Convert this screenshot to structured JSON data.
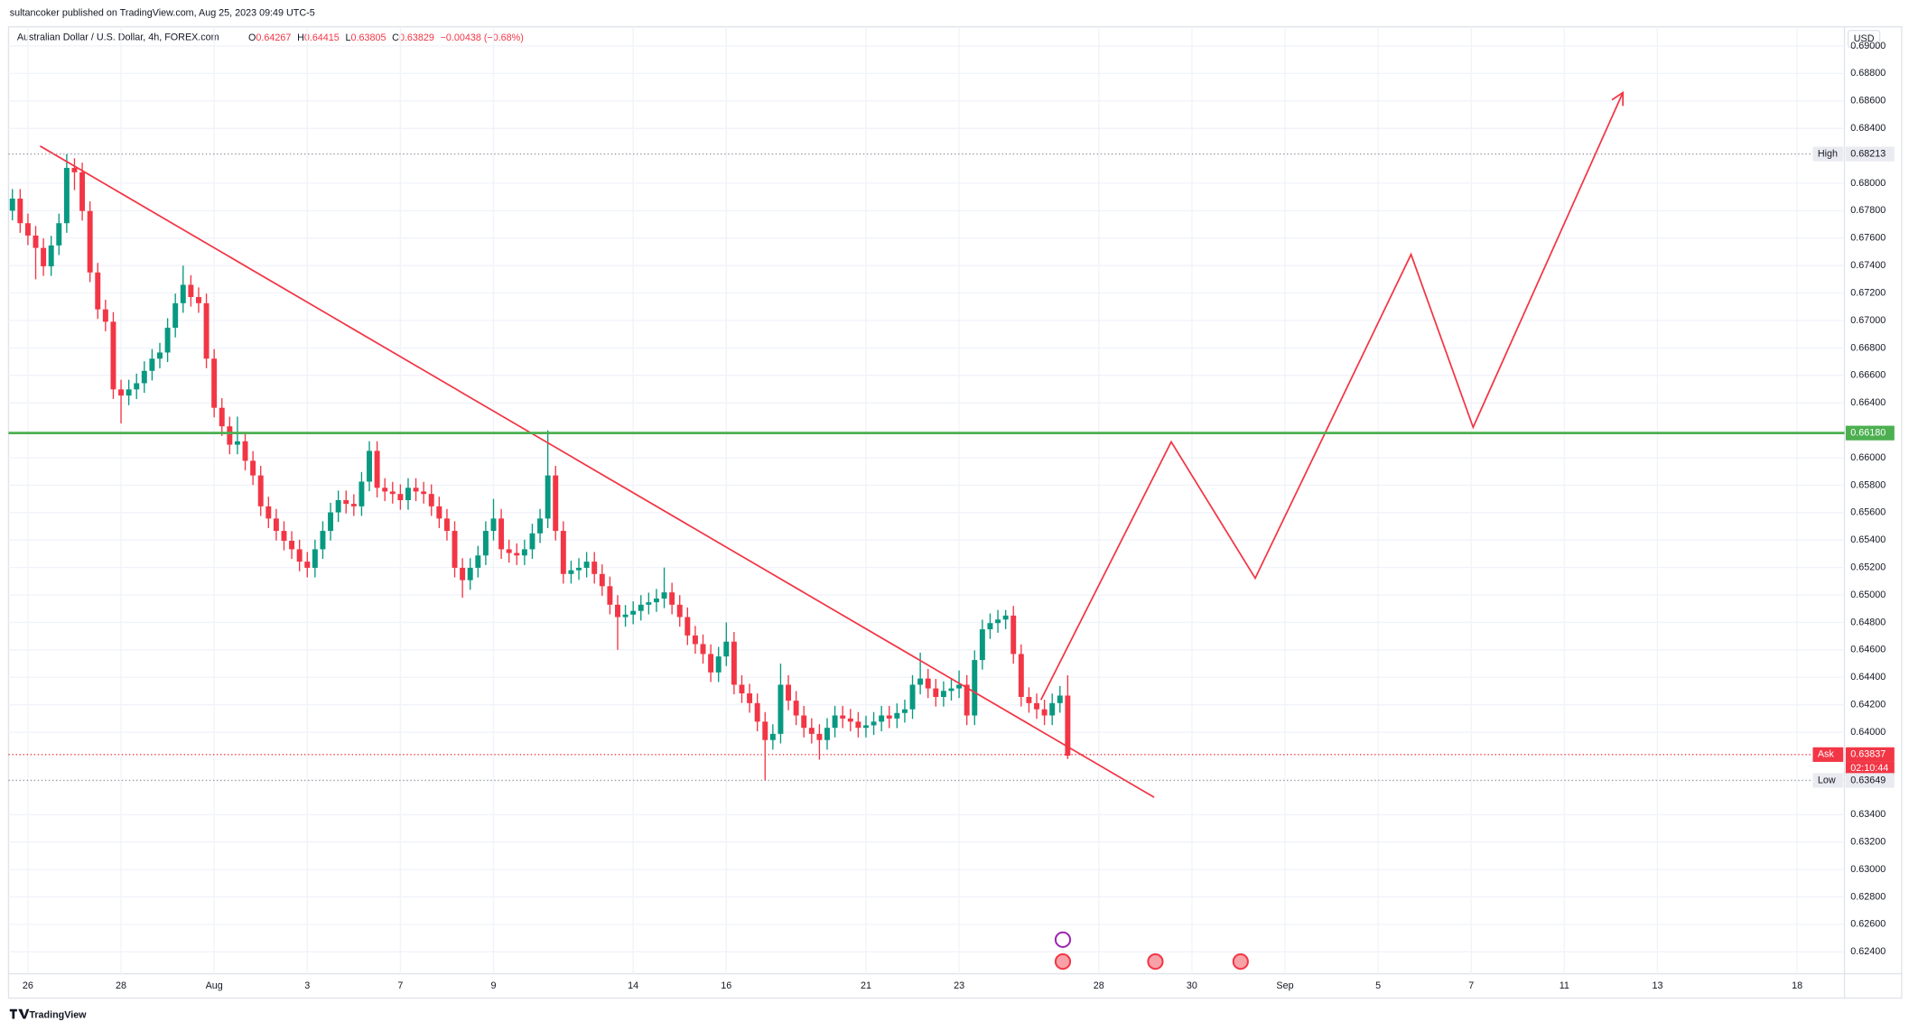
{
  "header": {
    "byline": "sultancoker published on TradingView.com, Aug 25, 2023 09:49 UTC-5",
    "brand": "TradingView"
  },
  "chart_data": {
    "type": "candlestick",
    "title": "Australian Dollar / U.S. Dollar, 4h, FOREX.com",
    "ohlc_labels": [
      "O",
      "H",
      "L",
      "C"
    ],
    "change": "−0.00438 (−0.68%)",
    "currency": "USD",
    "up_color": "#089981",
    "down_color": "#f23645",
    "grid": true,
    "candles": [
      [
        0.678,
        0.67958,
        0.6773,
        0.67888
      ],
      [
        0.67888,
        0.67958,
        0.67639,
        0.67709
      ],
      [
        0.67709,
        0.67779,
        0.67549,
        0.67619
      ],
      [
        0.67619,
        0.67689,
        0.673,
        0.67529
      ],
      [
        0.67529,
        0.67599,
        0.67325,
        0.67395
      ],
      [
        0.67395,
        0.67617,
        0.67325,
        0.67547
      ],
      [
        0.67547,
        0.67779,
        0.67477,
        0.67709
      ],
      [
        0.67709,
        0.68213,
        0.67639,
        0.68112
      ],
      [
        0.68112,
        0.68182,
        0.6795,
        0.6808
      ],
      [
        0.6808,
        0.6815,
        0.67728,
        0.67798
      ],
      [
        0.67798,
        0.67868,
        0.6728,
        0.6735
      ],
      [
        0.6735,
        0.6742,
        0.67011,
        0.67081
      ],
      [
        0.67081,
        0.67151,
        0.66921,
        0.66991
      ],
      [
        0.66991,
        0.67061,
        0.66428,
        0.66498
      ],
      [
        0.66498,
        0.66568,
        0.6625,
        0.66453
      ],
      [
        0.66453,
        0.66568,
        0.66383,
        0.66498
      ],
      [
        0.66498,
        0.66613,
        0.66428,
        0.66543
      ],
      [
        0.66543,
        0.66703,
        0.66473,
        0.66633
      ],
      [
        0.66633,
        0.66792,
        0.66563,
        0.66722
      ],
      [
        0.66722,
        0.66837,
        0.66652,
        0.66767
      ],
      [
        0.66767,
        0.67017,
        0.66697,
        0.66947
      ],
      [
        0.66947,
        0.67196,
        0.66877,
        0.67126
      ],
      [
        0.67126,
        0.674,
        0.67056,
        0.6726
      ],
      [
        0.6726,
        0.6733,
        0.67101,
        0.67171
      ],
      [
        0.67171,
        0.67241,
        0.67056,
        0.67126
      ],
      [
        0.67126,
        0.67196,
        0.66652,
        0.66722
      ],
      [
        0.66722,
        0.66792,
        0.66294,
        0.66364
      ],
      [
        0.66364,
        0.66434,
        0.66159,
        0.66229
      ],
      [
        0.66229,
        0.66299,
        0.66025,
        0.66095
      ],
      [
        0.66095,
        0.663,
        0.66025,
        0.6612
      ],
      [
        0.6612,
        0.6619,
        0.65908,
        0.65978
      ],
      [
        0.65978,
        0.66048,
        0.65801,
        0.65871
      ],
      [
        0.65871,
        0.65941,
        0.65576,
        0.65646
      ],
      [
        0.65646,
        0.65716,
        0.65487,
        0.65557
      ],
      [
        0.65557,
        0.65627,
        0.65397,
        0.65467
      ],
      [
        0.65467,
        0.65537,
        0.65325,
        0.65395
      ],
      [
        0.65395,
        0.65465,
        0.65263,
        0.65333
      ],
      [
        0.65333,
        0.65403,
        0.65173,
        0.65243
      ],
      [
        0.65243,
        0.65313,
        0.65128,
        0.65198
      ],
      [
        0.65198,
        0.65403,
        0.65128,
        0.65333
      ],
      [
        0.65333,
        0.65537,
        0.65263,
        0.65467
      ],
      [
        0.65467,
        0.65672,
        0.65397,
        0.65602
      ],
      [
        0.65602,
        0.65761,
        0.65532,
        0.65691
      ],
      [
        0.65691,
        0.65761,
        0.65594,
        0.65664
      ],
      [
        0.65664,
        0.65734,
        0.65576,
        0.65646
      ],
      [
        0.65646,
        0.65896,
        0.65576,
        0.65826
      ],
      [
        0.65826,
        0.6612,
        0.65756,
        0.6605
      ],
      [
        0.6605,
        0.6612,
        0.65711,
        0.65781
      ],
      [
        0.65781,
        0.65851,
        0.65684,
        0.65754
      ],
      [
        0.65754,
        0.65824,
        0.65666,
        0.65736
      ],
      [
        0.65736,
        0.65806,
        0.65621,
        0.65691
      ],
      [
        0.65691,
        0.65851,
        0.65621,
        0.65781
      ],
      [
        0.65781,
        0.65851,
        0.65684,
        0.65754
      ],
      [
        0.65754,
        0.65824,
        0.65666,
        0.65736
      ],
      [
        0.65736,
        0.65806,
        0.65576,
        0.65646
      ],
      [
        0.65646,
        0.65716,
        0.65487,
        0.65557
      ],
      [
        0.65557,
        0.65627,
        0.65397,
        0.65467
      ],
      [
        0.65467,
        0.65537,
        0.65128,
        0.65198
      ],
      [
        0.65198,
        0.65268,
        0.6498,
        0.65108
      ],
      [
        0.65108,
        0.65268,
        0.65038,
        0.65198
      ],
      [
        0.65198,
        0.65358,
        0.65128,
        0.65288
      ],
      [
        0.65288,
        0.65537,
        0.65218,
        0.65467
      ],
      [
        0.65467,
        0.657,
        0.65397,
        0.65557
      ],
      [
        0.65557,
        0.65627,
        0.65263,
        0.65333
      ],
      [
        0.65333,
        0.65403,
        0.65236,
        0.65306
      ],
      [
        0.65306,
        0.65376,
        0.65218,
        0.65288
      ],
      [
        0.65288,
        0.65403,
        0.65218,
        0.65333
      ],
      [
        0.65333,
        0.65519,
        0.65263,
        0.65449
      ],
      [
        0.65449,
        0.65627,
        0.65379,
        0.65557
      ],
      [
        0.65557,
        0.662,
        0.65487,
        0.65871
      ],
      [
        0.65871,
        0.65941,
        0.65397,
        0.65467
      ],
      [
        0.65467,
        0.65537,
        0.65083,
        0.65153
      ],
      [
        0.65153,
        0.6525,
        0.65083,
        0.6518
      ],
      [
        0.6518,
        0.65268,
        0.6511,
        0.65198
      ],
      [
        0.65198,
        0.65313,
        0.65128,
        0.65243
      ],
      [
        0.65243,
        0.65313,
        0.65083,
        0.65153
      ],
      [
        0.65153,
        0.65223,
        0.64994,
        0.65064
      ],
      [
        0.65064,
        0.65134,
        0.64859,
        0.64929
      ],
      [
        0.64929,
        0.64999,
        0.646,
        0.64839
      ],
      [
        0.64839,
        0.64927,
        0.64769,
        0.64857
      ],
      [
        0.64857,
        0.64954,
        0.64787,
        0.64884
      ],
      [
        0.64884,
        0.64999,
        0.64814,
        0.64929
      ],
      [
        0.64929,
        0.65017,
        0.64859,
        0.64947
      ],
      [
        0.64947,
        0.65044,
        0.64877,
        0.64974
      ],
      [
        0.64974,
        0.652,
        0.64904,
        0.65019
      ],
      [
        0.65019,
        0.65089,
        0.64859,
        0.64929
      ],
      [
        0.64929,
        0.64999,
        0.64769,
        0.64839
      ],
      [
        0.64839,
        0.64909,
        0.64635,
        0.64705
      ],
      [
        0.64705,
        0.64775,
        0.64572,
        0.64642
      ],
      [
        0.64642,
        0.64712,
        0.645,
        0.6457
      ],
      [
        0.6457,
        0.6464,
        0.64366,
        0.64436
      ],
      [
        0.64436,
        0.64622,
        0.64366,
        0.64552
      ],
      [
        0.64552,
        0.648,
        0.64482,
        0.6466
      ],
      [
        0.6466,
        0.6473,
        0.64276,
        0.64346
      ],
      [
        0.64346,
        0.64416,
        0.64213,
        0.64283
      ],
      [
        0.64283,
        0.64353,
        0.64142,
        0.64212
      ],
      [
        0.64212,
        0.64282,
        0.64007,
        0.64077
      ],
      [
        0.64077,
        0.64147,
        0.63649,
        0.63943
      ],
      [
        0.63943,
        0.64058,
        0.63873,
        0.63988
      ],
      [
        0.63988,
        0.645,
        0.63918,
        0.64346
      ],
      [
        0.64346,
        0.64416,
        0.6416,
        0.6423
      ],
      [
        0.6423,
        0.643,
        0.64052,
        0.64122
      ],
      [
        0.64122,
        0.64192,
        0.63962,
        0.64032
      ],
      [
        0.64032,
        0.64102,
        0.63918,
        0.63988
      ],
      [
        0.63988,
        0.64058,
        0.638,
        0.63943
      ],
      [
        0.63943,
        0.64102,
        0.63873,
        0.64032
      ],
      [
        0.64032,
        0.64192,
        0.63962,
        0.64122
      ],
      [
        0.64122,
        0.64192,
        0.6403,
        0.641
      ],
      [
        0.641,
        0.6417,
        0.64007,
        0.64077
      ],
      [
        0.64077,
        0.64147,
        0.63962,
        0.64032
      ],
      [
        0.64032,
        0.6412,
        0.63962,
        0.6405
      ],
      [
        0.6405,
        0.64147,
        0.6398,
        0.64077
      ],
      [
        0.64077,
        0.64192,
        0.64007,
        0.64122
      ],
      [
        0.64122,
        0.64192,
        0.6403,
        0.641
      ],
      [
        0.641,
        0.6421,
        0.6403,
        0.6414
      ],
      [
        0.6414,
        0.64237,
        0.6407,
        0.64167
      ],
      [
        0.64167,
        0.64416,
        0.64097,
        0.64346
      ],
      [
        0.64346,
        0.6458,
        0.64276,
        0.64391
      ],
      [
        0.64391,
        0.64461,
        0.64249,
        0.64319
      ],
      [
        0.64319,
        0.64389,
        0.64187,
        0.64257
      ],
      [
        0.64257,
        0.64371,
        0.64187,
        0.64301
      ],
      [
        0.64301,
        0.64389,
        0.64231,
        0.64319
      ],
      [
        0.64319,
        0.6445,
        0.64249,
        0.64346
      ],
      [
        0.64346,
        0.64416,
        0.64052,
        0.64122
      ],
      [
        0.64122,
        0.64596,
        0.64052,
        0.64526
      ],
      [
        0.64526,
        0.6482,
        0.64456,
        0.6475
      ],
      [
        0.6475,
        0.64865,
        0.6468,
        0.64795
      ],
      [
        0.64795,
        0.64891,
        0.64725,
        0.64821
      ],
      [
        0.64821,
        0.64891,
        0.64751,
        0.6485
      ],
      [
        0.6485,
        0.6492,
        0.645,
        0.6457
      ],
      [
        0.6457,
        0.6464,
        0.64187,
        0.64257
      ],
      [
        0.64257,
        0.64327,
        0.64142,
        0.64212
      ],
      [
        0.64212,
        0.64282,
        0.64097,
        0.64167
      ],
      [
        0.64167,
        0.64237,
        0.64052,
        0.64122
      ],
      [
        0.64122,
        0.64282,
        0.64052,
        0.64212
      ],
      [
        0.64212,
        0.64337,
        0.64142,
        0.64267
      ],
      [
        0.64267,
        0.64415,
        0.63805,
        0.63829
      ]
    ],
    "xlim": [
      -0.5,
      236.1
    ],
    "xticks": [
      {
        "value": 2,
        "label": "26"
      },
      {
        "value": 14,
        "label": "28"
      },
      {
        "value": 26,
        "label": "Aug"
      },
      {
        "value": 38,
        "label": "3"
      },
      {
        "value": 50,
        "label": "7"
      },
      {
        "value": 62,
        "label": "9"
      },
      {
        "value": 80,
        "label": "14"
      },
      {
        "value": 92,
        "label": "16"
      },
      {
        "value": 110,
        "label": "21"
      },
      {
        "value": 122,
        "label": "23"
      },
      {
        "value": 140,
        "label": "28"
      },
      {
        "value": 152,
        "label": "30"
      },
      {
        "value": 164,
        "label": "Sep"
      },
      {
        "value": 176,
        "label": "5"
      },
      {
        "value": 188,
        "label": "7"
      },
      {
        "value": 200,
        "label": "11"
      },
      {
        "value": 212,
        "label": "13"
      },
      {
        "value": 230,
        "label": "18"
      }
    ],
    "ylim": [
      0.6224,
      0.6914
    ],
    "yticks": [
      {
        "value": 0.69,
        "label": "0.69000"
      },
      {
        "value": 0.688,
        "label": "0.68800"
      },
      {
        "value": 0.686,
        "label": "0.68600"
      },
      {
        "value": 0.684,
        "label": "0.68400"
      },
      {
        "value": 0.68,
        "label": "0.68000"
      },
      {
        "value": 0.678,
        "label": "0.67800"
      },
      {
        "value": 0.676,
        "label": "0.67600"
      },
      {
        "value": 0.674,
        "label": "0.67400"
      },
      {
        "value": 0.672,
        "label": "0.67200"
      },
      {
        "value": 0.67,
        "label": "0.67000"
      },
      {
        "value": 0.668,
        "label": "0.66800"
      },
      {
        "value": 0.666,
        "label": "0.66600"
      },
      {
        "value": 0.664,
        "label": "0.66400"
      },
      {
        "value": 0.66,
        "label": "0.66000"
      },
      {
        "value": 0.658,
        "label": "0.65800"
      },
      {
        "value": 0.656,
        "label": "0.65600"
      },
      {
        "value": 0.654,
        "label": "0.65400"
      },
      {
        "value": 0.652,
        "label": "0.65200"
      },
      {
        "value": 0.65,
        "label": "0.65000"
      },
      {
        "value": 0.648,
        "label": "0.64800"
      },
      {
        "value": 0.646,
        "label": "0.64600"
      },
      {
        "value": 0.644,
        "label": "0.64400"
      },
      {
        "value": 0.642,
        "label": "0.64200"
      },
      {
        "value": 0.64,
        "label": "0.64000"
      },
      {
        "value": 0.634,
        "label": "0.63400"
      },
      {
        "value": 0.632,
        "label": "0.63200"
      },
      {
        "value": 0.63,
        "label": "0.63000"
      },
      {
        "value": 0.628,
        "label": "0.62800"
      },
      {
        "value": 0.626,
        "label": "0.62600"
      },
      {
        "value": 0.624,
        "label": "0.62400"
      }
    ],
    "levels": [
      {
        "name": "High",
        "value": 0.68213,
        "color": "#9598a1",
        "style": "dotted"
      },
      {
        "value": 0.6618,
        "label": "0.66180",
        "color": "#4caf50",
        "style": "solid"
      },
      {
        "name": "Ask",
        "value": 0.63837,
        "color": "#f23645",
        "style": "dotted",
        "countdown": "02:10:44"
      },
      {
        "name": "Low",
        "value": 0.63649,
        "color": "#9598a1",
        "style": "dotted"
      }
    ]
  }
}
